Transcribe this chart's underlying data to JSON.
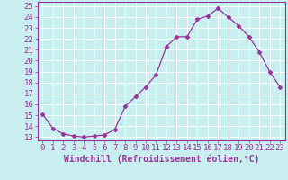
{
  "hours": [
    0,
    1,
    2,
    3,
    4,
    5,
    6,
    7,
    8,
    9,
    10,
    11,
    12,
    13,
    14,
    15,
    16,
    17,
    18,
    19,
    20,
    21,
    22,
    23
  ],
  "values": [
    15.1,
    13.8,
    13.3,
    13.1,
    13.0,
    13.1,
    13.2,
    13.7,
    15.8,
    16.7,
    17.6,
    18.7,
    21.3,
    22.2,
    22.2,
    23.8,
    24.1,
    24.8,
    24.0,
    23.2,
    22.2,
    20.8,
    19.0,
    17.6
  ],
  "line_color": "#993399",
  "marker": "D",
  "marker_size": 2.5,
  "bg_color": "#c8eef0",
  "grid_color": "#ffffff",
  "xlabel": "Windchill (Refroidissement éolien,°C)",
  "yticks": [
    13,
    14,
    15,
    16,
    17,
    18,
    19,
    20,
    21,
    22,
    23,
    24,
    25
  ],
  "ylim": [
    12.7,
    25.4
  ],
  "xlim": [
    -0.5,
    23.5
  ],
  "axis_label_fontsize": 7,
  "tick_fontsize": 6.5
}
